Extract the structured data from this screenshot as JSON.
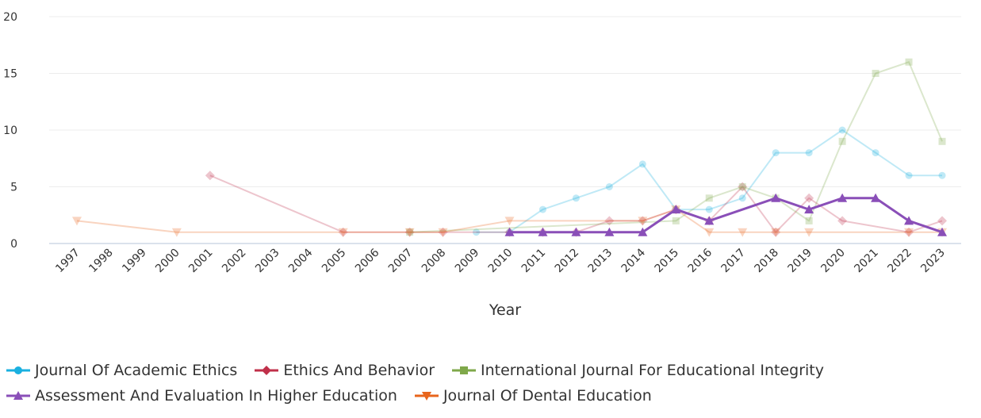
{
  "chart_data": {
    "type": "line",
    "xlabel": "Year",
    "ylabel": "",
    "ylim": [
      0,
      20
    ],
    "yticks": [
      0,
      5,
      10,
      15,
      20
    ],
    "categories": [
      "1997",
      "1998",
      "1999",
      "2000",
      "2001",
      "2002",
      "2003",
      "2004",
      "2005",
      "2006",
      "2007",
      "2008",
      "2009",
      "2010",
      "2011",
      "2012",
      "2013",
      "2014",
      "2015",
      "2016",
      "2017",
      "2018",
      "2019",
      "2020",
      "2021",
      "2022",
      "2023"
    ],
    "grid": true,
    "legend_position": "bottom",
    "series": [
      {
        "name": "Journal Of Academic Ethics",
        "color": "#1ab0e0",
        "marker": "circle",
        "faded": true,
        "points": [
          {
            "x": "2009",
            "y": 1
          },
          {
            "x": "2010",
            "y": 1
          },
          {
            "x": "2011",
            "y": 3
          },
          {
            "x": "2012",
            "y": 4
          },
          {
            "x": "2013",
            "y": 5
          },
          {
            "x": "2014",
            "y": 7
          },
          {
            "x": "2015",
            "y": 3
          },
          {
            "x": "2016",
            "y": 3
          },
          {
            "x": "2017",
            "y": 4
          },
          {
            "x": "2018",
            "y": 8
          },
          {
            "x": "2019",
            "y": 8
          },
          {
            "x": "2020",
            "y": 10
          },
          {
            "x": "2021",
            "y": 8
          },
          {
            "x": "2022",
            "y": 6
          },
          {
            "x": "2023",
            "y": 6
          }
        ]
      },
      {
        "name": "Ethics And Behavior",
        "color": "#c0304a",
        "marker": "diamond",
        "faded": true,
        "points": [
          {
            "x": "2001",
            "y": 6
          },
          {
            "x": "2005",
            "y": 1
          },
          {
            "x": "2007",
            "y": 1
          },
          {
            "x": "2008",
            "y": 1
          },
          {
            "x": "2010",
            "y": 1
          },
          {
            "x": "2011",
            "y": 1
          },
          {
            "x": "2012",
            "y": 1
          },
          {
            "x": "2013",
            "y": 2
          },
          {
            "x": "2014",
            "y": 2
          },
          {
            "x": "2015",
            "y": 3
          },
          {
            "x": "2016",
            "y": 2
          },
          {
            "x": "2017",
            "y": 5
          },
          {
            "x": "2018",
            "y": 1
          },
          {
            "x": "2019",
            "y": 4
          },
          {
            "x": "2020",
            "y": 2
          },
          {
            "x": "2022",
            "y": 1
          },
          {
            "x": "2023",
            "y": 2
          }
        ]
      },
      {
        "name": "International Journal For Educational Integrity",
        "color": "#7fa84a",
        "marker": "square",
        "faded": true,
        "points": [
          {
            "x": "2007",
            "y": 1
          },
          {
            "x": "2015",
            "y": 2
          },
          {
            "x": "2016",
            "y": 4
          },
          {
            "x": "2017",
            "y": 5
          },
          {
            "x": "2018",
            "y": 4
          },
          {
            "x": "2019",
            "y": 2
          },
          {
            "x": "2020",
            "y": 9
          },
          {
            "x": "2021",
            "y": 15
          },
          {
            "x": "2022",
            "y": 16
          },
          {
            "x": "2023",
            "y": 9
          }
        ]
      },
      {
        "name": "Assessment And Evaluation In Higher Education",
        "color": "#8a4fb8",
        "marker": "triangle",
        "faded": false,
        "points": [
          {
            "x": "2010",
            "y": 1
          },
          {
            "x": "2011",
            "y": 1
          },
          {
            "x": "2012",
            "y": 1
          },
          {
            "x": "2013",
            "y": 1
          },
          {
            "x": "2014",
            "y": 1
          },
          {
            "x": "2015",
            "y": 3
          },
          {
            "x": "2016",
            "y": 2
          },
          {
            "x": "2018",
            "y": 4
          },
          {
            "x": "2019",
            "y": 3
          },
          {
            "x": "2020",
            "y": 4
          },
          {
            "x": "2021",
            "y": 4
          },
          {
            "x": "2022",
            "y": 2
          },
          {
            "x": "2023",
            "y": 1
          }
        ]
      },
      {
        "name": "Journal Of Dental Education",
        "color": "#e8651c",
        "marker": "triangle-down",
        "faded": true,
        "points": [
          {
            "x": "1997",
            "y": 2
          },
          {
            "x": "2000",
            "y": 1
          },
          {
            "x": "2005",
            "y": 1
          },
          {
            "x": "2007",
            "y": 1
          },
          {
            "x": "2008",
            "y": 1
          },
          {
            "x": "2010",
            "y": 2
          },
          {
            "x": "2014",
            "y": 2
          },
          {
            "x": "2015",
            "y": 3
          },
          {
            "x": "2016",
            "y": 1
          },
          {
            "x": "2017",
            "y": 1
          },
          {
            "x": "2018",
            "y": 1
          },
          {
            "x": "2019",
            "y": 1
          },
          {
            "x": "2022",
            "y": 1
          },
          {
            "x": "2023",
            "y": 1
          }
        ]
      }
    ]
  },
  "legend": {
    "rows": [
      [
        0,
        1,
        2
      ],
      [
        3,
        4
      ]
    ]
  }
}
